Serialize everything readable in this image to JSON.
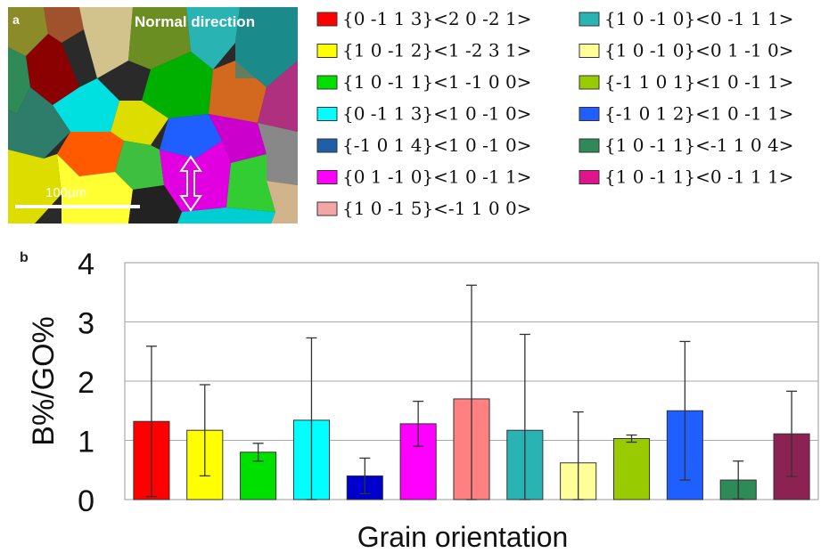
{
  "panel_a": {
    "label": "a",
    "direction_label": "Normal direction",
    "scale_label": "100μm"
  },
  "panel_b": {
    "label": "b"
  },
  "legend": [
    {
      "text": "{0 -1 1 3}<2 0 -2 1>",
      "color": "#ff0000"
    },
    {
      "text": "{1 0 -1 2}<1 -2 3 1>",
      "color": "#ffff00"
    },
    {
      "text": "{1 0 -1 1}<1 -1 0 0>",
      "color": "#00e000"
    },
    {
      "text": "{0 -1 1 3}<1 0 -1 0>",
      "color": "#00ffff"
    },
    {
      "text": "{-1 0 1 4}<1 0 -1 0>",
      "color": "#1e5fa8"
    },
    {
      "text": "{0 1 -1 0}<1 0 -1 1>",
      "color": "#ff00ff"
    },
    {
      "text": "{1 0 -1 5}<-1 1 0 0>",
      "color": "#f4a6a6"
    },
    {
      "text": "{1 0 -1 0}<0 -1 1 1>",
      "color": "#2ab3b3"
    },
    {
      "text": "{1 0 -1 0}<0 1 -1 0>",
      "color": "#ffff99"
    },
    {
      "text": "{-1 1 0 1}<1 0 -1 1>",
      "color": "#99cc00"
    },
    {
      "text": "{-1 0 1 2}<1 0 -1 1>",
      "color": "#1f5fff"
    },
    {
      "text": "{1 0 -1 1}<-1 1 0 4>",
      "color": "#2e8b57"
    },
    {
      "text": "{1 0 -1 1}<0 -1 1 1>",
      "color": "#e0148c"
    }
  ],
  "chart_data": {
    "type": "bar",
    "title": "",
    "xlabel": "Grain orientation",
    "ylabel": "B%/GO%",
    "ylim": [
      0,
      4
    ],
    "yticks": [
      "0",
      "1",
      "2",
      "3",
      "4"
    ],
    "grid": true,
    "values": [
      1.32,
      1.17,
      0.8,
      1.34,
      0.4,
      1.28,
      1.7,
      1.17,
      0.62,
      1.03,
      1.5,
      0.33,
      1.11
    ],
    "errors": [
      1.27,
      0.77,
      0.15,
      1.39,
      0.3,
      0.38,
      1.92,
      1.62,
      0.86,
      0.06,
      1.17,
      0.32,
      0.72
    ],
    "colors": [
      "#ff0000",
      "#ffff00",
      "#00e000",
      "#00ffff",
      "#0000cc",
      "#ff00ff",
      "#ff8080",
      "#2ab3b3",
      "#ffff99",
      "#99cc00",
      "#1f5fff",
      "#2e8b57",
      "#8b2252"
    ]
  }
}
